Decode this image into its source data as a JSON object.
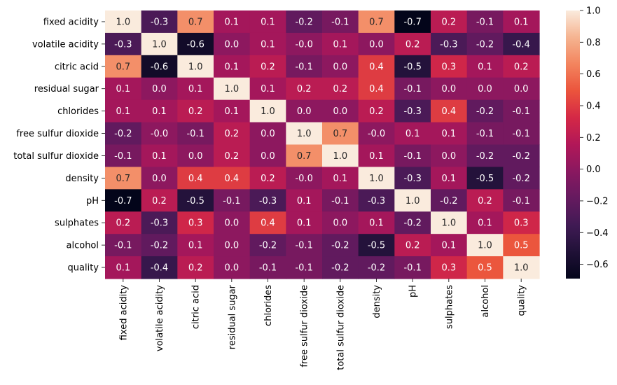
{
  "chart_data": {
    "type": "heatmap",
    "title": "",
    "xlabel": "",
    "ylabel": "",
    "labels": [
      "fixed acidity",
      "volatile acidity",
      "citric acid",
      "residual sugar",
      "chlorides",
      "free sulfur dioxide",
      "total sulfur dioxide",
      "density",
      "pH",
      "sulphates",
      "alcohol",
      "quality"
    ],
    "matrix": [
      [
        1.0,
        -0.3,
        0.7,
        0.1,
        0.1,
        -0.2,
        -0.1,
        0.7,
        -0.7,
        0.2,
        -0.1,
        0.1
      ],
      [
        -0.3,
        1.0,
        -0.6,
        0.0,
        0.1,
        -0.0,
        0.1,
        0.0,
        0.2,
        -0.3,
        -0.2,
        -0.4
      ],
      [
        0.7,
        -0.6,
        1.0,
        0.1,
        0.2,
        -0.1,
        0.0,
        0.4,
        -0.5,
        0.3,
        0.1,
        0.2
      ],
      [
        0.1,
        0.0,
        0.1,
        1.0,
        0.1,
        0.2,
        0.2,
        0.4,
        -0.1,
        0.0,
        0.0,
        0.0
      ],
      [
        0.1,
        0.1,
        0.2,
        0.1,
        1.0,
        0.0,
        0.0,
        0.2,
        -0.3,
        0.4,
        -0.2,
        -0.1
      ],
      [
        -0.2,
        -0.0,
        -0.1,
        0.2,
        0.0,
        1.0,
        0.7,
        -0.0,
        0.1,
        0.1,
        -0.1,
        -0.1
      ],
      [
        -0.1,
        0.1,
        0.0,
        0.2,
        0.0,
        0.7,
        1.0,
        0.1,
        -0.1,
        0.0,
        -0.2,
        -0.2
      ],
      [
        0.7,
        0.0,
        0.4,
        0.4,
        0.2,
        -0.0,
        0.1,
        1.0,
        -0.3,
        0.1,
        -0.5,
        -0.2
      ],
      [
        -0.7,
        0.2,
        -0.5,
        -0.1,
        -0.3,
        0.1,
        -0.1,
        -0.3,
        1.0,
        -0.2,
        0.2,
        -0.1
      ],
      [
        0.2,
        -0.3,
        0.3,
        0.0,
        0.4,
        0.1,
        0.0,
        0.1,
        -0.2,
        1.0,
        0.1,
        0.3
      ],
      [
        -0.1,
        -0.2,
        0.1,
        0.0,
        -0.2,
        -0.1,
        -0.2,
        -0.5,
        0.2,
        0.1,
        1.0,
        0.5
      ],
      [
        0.1,
        -0.4,
        0.2,
        0.0,
        -0.1,
        -0.1,
        -0.2,
        -0.2,
        -0.1,
        0.3,
        0.5,
        1.0
      ]
    ],
    "cell_labels": [
      [
        "1.0",
        "-0.3",
        "0.7",
        "0.1",
        "0.1",
        "-0.2",
        "-0.1",
        "0.7",
        "-0.7",
        "0.2",
        "-0.1",
        "0.1"
      ],
      [
        "-0.3",
        "1.0",
        "-0.6",
        "0.0",
        "0.1",
        "-0.0",
        "0.1",
        "0.0",
        "0.2",
        "-0.3",
        "-0.2",
        "-0.4"
      ],
      [
        "0.7",
        "-0.6",
        "1.0",
        "0.1",
        "0.2",
        "-0.1",
        "0.0",
        "0.4",
        "-0.5",
        "0.3",
        "0.1",
        "0.2"
      ],
      [
        "0.1",
        "0.0",
        "0.1",
        "1.0",
        "0.1",
        "0.2",
        "0.2",
        "0.4",
        "-0.1",
        "0.0",
        "0.0",
        "0.0"
      ],
      [
        "0.1",
        "0.1",
        "0.2",
        "0.1",
        "1.0",
        "0.0",
        "0.0",
        "0.2",
        "-0.3",
        "0.4",
        "-0.2",
        "-0.1"
      ],
      [
        "-0.2",
        "-0.0",
        "-0.1",
        "0.2",
        "0.0",
        "1.0",
        "0.7",
        "-0.0",
        "0.1",
        "0.1",
        "-0.1",
        "-0.1"
      ],
      [
        "-0.1",
        "0.1",
        "0.0",
        "0.2",
        "0.0",
        "0.7",
        "1.0",
        "0.1",
        "-0.1",
        "0.0",
        "-0.2",
        "-0.2"
      ],
      [
        "0.7",
        "0.0",
        "0.4",
        "0.4",
        "0.2",
        "-0.0",
        "0.1",
        "1.0",
        "-0.3",
        "0.1",
        "-0.5",
        "-0.2"
      ],
      [
        "-0.7",
        "0.2",
        "-0.5",
        "-0.1",
        "-0.3",
        "0.1",
        "-0.1",
        "-0.3",
        "1.0",
        "-0.2",
        "0.2",
        "-0.1"
      ],
      [
        "0.2",
        "-0.3",
        "0.3",
        "0.0",
        "0.4",
        "0.1",
        "0.0",
        "0.1",
        "-0.2",
        "1.0",
        "0.1",
        "0.3"
      ],
      [
        "-0.1",
        "-0.2",
        "0.1",
        "0.0",
        "-0.2",
        "-0.1",
        "-0.2",
        "-0.5",
        "0.2",
        "0.1",
        "1.0",
        "0.5"
      ],
      [
        "0.1",
        "-0.4",
        "0.2",
        "0.0",
        "-0.1",
        "-0.1",
        "-0.2",
        "-0.2",
        "-0.1",
        "0.3",
        "0.5",
        "1.0"
      ]
    ],
    "colorbar": {
      "vmin": -0.69,
      "vmax": 1.0,
      "ticks": [
        1.0,
        0.8,
        0.6,
        0.4,
        0.2,
        0.0,
        -0.2,
        -0.4,
        -0.6
      ],
      "tick_labels": [
        "1.0",
        "0.8",
        "0.6",
        "0.4",
        "0.2",
        "0.0",
        "−0.2",
        "−0.4",
        "−0.6"
      ],
      "colormap": "rocket"
    },
    "grid": false,
    "legend": "colorbar-right"
  }
}
